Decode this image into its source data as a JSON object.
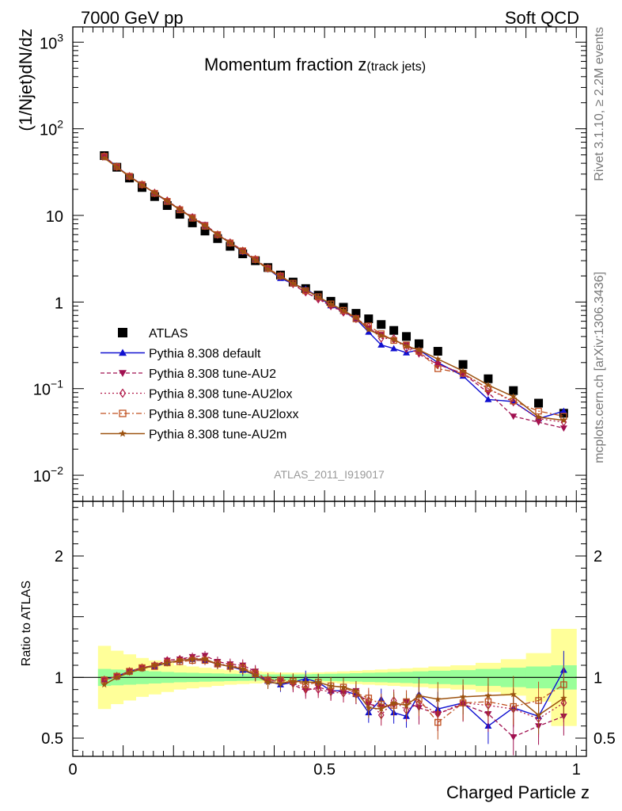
{
  "header": {
    "left_label": "7000 GeV pp",
    "right_label": "Soft QCD"
  },
  "side_labels": {
    "rivet": "Rivet 3.1.10, ≥ 2.2M events",
    "mcplots": "mcplots.cern.ch [arXiv:1306.3436]"
  },
  "colors": {
    "data": "#000000",
    "default": "#1010d0",
    "au2": "#a01050",
    "au2lox": "#b01848",
    "au2loxx": "#c05020",
    "au2m": "#9c5210",
    "band_inner": "#99ff99",
    "band_outer": "#ffff99"
  },
  "chart_data": [
    {
      "type": "scatter",
      "panel": "main",
      "title_main": "Momentum fraction z",
      "title_sub": "(track jets)",
      "ylabel": "(1/Njet)dN/dz",
      "yscale": "log",
      "ylim": [
        0.005,
        1500
      ],
      "xlim": [
        0,
        1.02
      ],
      "watermark": "ATLAS_2011_I919017",
      "y_ticks": [
        {
          "value": 0.01,
          "label": "10",
          "exp": "−2"
        },
        {
          "value": 0.1,
          "label": "10",
          "exp": "−1"
        },
        {
          "value": 1,
          "label": "1",
          "exp": ""
        },
        {
          "value": 10,
          "label": "10",
          "exp": ""
        },
        {
          "value": 100,
          "label": "10",
          "exp": "2"
        },
        {
          "value": 1000,
          "label": "10",
          "exp": "3"
        }
      ],
      "x": [
        0.0625,
        0.0875,
        0.1125,
        0.1375,
        0.1625,
        0.1875,
        0.2125,
        0.2375,
        0.2625,
        0.2875,
        0.3125,
        0.3375,
        0.3625,
        0.3875,
        0.4125,
        0.4375,
        0.4625,
        0.4875,
        0.5125,
        0.5375,
        0.5625,
        0.5875,
        0.6125,
        0.6375,
        0.6625,
        0.6875,
        0.725,
        0.775,
        0.825,
        0.875,
        0.925,
        0.975
      ],
      "legend": [
        {
          "key": "data",
          "label": "ATLAS"
        },
        {
          "key": "default",
          "label": "Pythia 8.308 default"
        },
        {
          "key": "au2",
          "label": "Pythia 8.308 tune-AU2"
        },
        {
          "key": "au2lox",
          "label": "Pythia 8.308 tune-AU2lox"
        },
        {
          "key": "au2loxx",
          "label": "Pythia 8.308 tune-AU2loxx"
        },
        {
          "key": "au2m",
          "label": "Pythia 8.308 tune-AU2m"
        }
      ],
      "data_values": [
        49,
        36,
        27,
        21,
        16.5,
        13,
        10.3,
        8.2,
        6.6,
        5.4,
        4.4,
        3.6,
        3.0,
        2.5,
        2.05,
        1.7,
        1.43,
        1.2,
        1.02,
        0.87,
        0.74,
        0.64,
        0.55,
        0.47,
        0.4,
        0.33,
        0.27,
        0.19,
        0.13,
        0.095,
        0.068,
        0.052
      ],
      "series": [
        {
          "key": "default",
          "name": "Pythia 8.308 default",
          "values": [
            48,
            36.5,
            28.3,
            22.7,
            18.0,
            14.5,
            11.7,
            9.4,
            7.5,
            6.0,
            4.8,
            3.8,
            3.05,
            2.42,
            1.88,
            1.62,
            1.42,
            1.15,
            0.91,
            0.78,
            0.64,
            0.45,
            0.32,
            0.29,
            0.26,
            0.28,
            0.2,
            0.14,
            0.075,
            0.071,
            0.045,
            0.055
          ]
        },
        {
          "key": "au2",
          "name": "Pythia 8.308 tune-AU2",
          "values": [
            48,
            36.5,
            28.3,
            22.7,
            18.2,
            14.8,
            11.8,
            9.6,
            7.8,
            6.1,
            4.9,
            3.95,
            3.15,
            2.42,
            1.98,
            1.6,
            1.28,
            1.1,
            0.91,
            0.77,
            0.66,
            0.5,
            0.42,
            0.36,
            0.32,
            0.25,
            0.19,
            0.15,
            0.09,
            0.048,
            0.041,
            0.035
          ]
        },
        {
          "key": "au2lox",
          "name": "Pythia 8.308 tune-AU2lox",
          "values": [
            48,
            36.5,
            28.3,
            22.7,
            18.2,
            14.8,
            11.8,
            9.5,
            7.6,
            6.0,
            4.85,
            3.9,
            3.12,
            2.45,
            2.0,
            1.62,
            1.3,
            1.08,
            0.9,
            0.76,
            0.64,
            0.52,
            0.38,
            0.38,
            0.29,
            0.26,
            0.19,
            0.15,
            0.1,
            0.07,
            0.045,
            0.041
          ]
        },
        {
          "key": "au2loxx",
          "name": "Pythia 8.308 tune-AU2loxx",
          "values": [
            48,
            36.5,
            28.3,
            22.7,
            18.0,
            14.5,
            11.6,
            9.3,
            7.5,
            6.0,
            4.8,
            3.9,
            3.1,
            2.45,
            2.0,
            1.65,
            1.35,
            1.15,
            0.95,
            0.8,
            0.64,
            0.53,
            0.43,
            0.36,
            0.32,
            0.27,
            0.17,
            0.15,
            0.1,
            0.072,
            0.055,
            0.048
          ]
        },
        {
          "key": "au2m",
          "name": "Pythia 8.308 tune-AU2m",
          "values": [
            46,
            36,
            28,
            22.5,
            18.2,
            14.6,
            11.7,
            9.4,
            7.6,
            6.0,
            4.8,
            3.85,
            3.05,
            2.4,
            1.95,
            1.65,
            1.38,
            1.15,
            0.95,
            0.8,
            0.66,
            0.48,
            0.41,
            0.37,
            0.31,
            0.28,
            0.22,
            0.16,
            0.11,
            0.081,
            0.047,
            0.043
          ]
        }
      ]
    },
    {
      "type": "scatter",
      "panel": "ratio",
      "ylabel": "Ratio to ATLAS",
      "xlabel": "Charged Particle z",
      "yscale": "linear",
      "ylim": [
        0.35,
        2.45
      ],
      "xlim": [
        0,
        1.02
      ],
      "y_ticks": [
        {
          "value": 0.5,
          "label": "0.5"
        },
        {
          "value": 1,
          "label": "1"
        },
        {
          "value": 2,
          "label": "2"
        }
      ],
      "x_ticks": [
        {
          "value": 0,
          "label": "0"
        },
        {
          "value": 0.5,
          "label": "0.5"
        },
        {
          "value": 1,
          "label": "1"
        }
      ],
      "band_inner_halfwidth": [
        0.07,
        0.065,
        0.06,
        0.055,
        0.05,
        0.045,
        0.04,
        0.038,
        0.035,
        0.033,
        0.03,
        0.028,
        0.026,
        0.025,
        0.025,
        0.025,
        0.026,
        0.028,
        0.03,
        0.032,
        0.035,
        0.038,
        0.04,
        0.043,
        0.046,
        0.05,
        0.055,
        0.06,
        0.07,
        0.08,
        0.09,
        0.1
      ],
      "band_outer_halfwidth": [
        0.26,
        0.22,
        0.19,
        0.16,
        0.14,
        0.12,
        0.1,
        0.09,
        0.08,
        0.07,
        0.06,
        0.055,
        0.05,
        0.045,
        0.04,
        0.04,
        0.04,
        0.042,
        0.045,
        0.05,
        0.055,
        0.06,
        0.065,
        0.07,
        0.075,
        0.08,
        0.09,
        0.1,
        0.12,
        0.15,
        0.2,
        0.4
      ],
      "series": [
        {
          "key": "default",
          "name": "Pythia 8.308 default",
          "values": [
            0.98,
            1.01,
            1.05,
            1.08,
            1.09,
            1.12,
            1.14,
            1.15,
            1.14,
            1.11,
            1.09,
            1.06,
            1.02,
            0.97,
            0.94,
            0.96,
            0.99,
            0.96,
            0.89,
            0.89,
            0.86,
            0.71,
            0.82,
            0.71,
            0.68,
            0.86,
            0.74,
            0.79,
            0.6,
            0.75,
            0.68,
            1.06
          ]
        },
        {
          "key": "au2",
          "name": "Pythia 8.308 tune-AU2",
          "values": [
            0.98,
            1.01,
            1.05,
            1.08,
            1.1,
            1.14,
            1.15,
            1.17,
            1.18,
            1.13,
            1.11,
            1.1,
            1.05,
            0.97,
            0.97,
            0.94,
            0.89,
            0.92,
            0.89,
            0.88,
            0.89,
            0.78,
            0.76,
            0.77,
            0.8,
            0.75,
            0.7,
            0.78,
            0.7,
            0.51,
            0.6,
            0.68
          ]
        },
        {
          "key": "au2lox",
          "name": "Pythia 8.308 tune-AU2lox",
          "values": [
            0.98,
            1.01,
            1.05,
            1.08,
            1.1,
            1.14,
            1.15,
            1.16,
            1.15,
            1.11,
            1.1,
            1.08,
            1.04,
            0.98,
            0.98,
            0.95,
            0.91,
            0.9,
            0.88,
            0.87,
            0.86,
            0.81,
            0.69,
            0.81,
            0.73,
            0.79,
            0.7,
            0.79,
            0.77,
            0.74,
            0.66,
            0.79
          ]
        },
        {
          "key": "au2loxx",
          "name": "Pythia 8.308 tune-AU2loxx",
          "values": [
            0.98,
            1.01,
            1.05,
            1.08,
            1.09,
            1.12,
            1.13,
            1.14,
            1.14,
            1.11,
            1.09,
            1.08,
            1.03,
            0.98,
            0.98,
            0.97,
            0.94,
            0.96,
            0.93,
            0.92,
            0.87,
            0.83,
            0.78,
            0.77,
            0.8,
            0.82,
            0.63,
            0.79,
            0.8,
            0.76,
            0.81,
            0.94
          ]
        },
        {
          "key": "au2m",
          "name": "Pythia 8.308 tune-AU2m",
          "values": [
            0.94,
            1.0,
            1.04,
            1.07,
            1.1,
            1.12,
            1.14,
            1.15,
            1.15,
            1.11,
            1.09,
            1.07,
            1.02,
            0.96,
            0.95,
            0.97,
            0.96,
            0.96,
            0.93,
            0.92,
            0.89,
            0.75,
            0.74,
            0.79,
            0.77,
            0.85,
            0.82,
            0.84,
            0.85,
            0.86,
            0.69,
            0.83
          ]
        }
      ]
    }
  ]
}
